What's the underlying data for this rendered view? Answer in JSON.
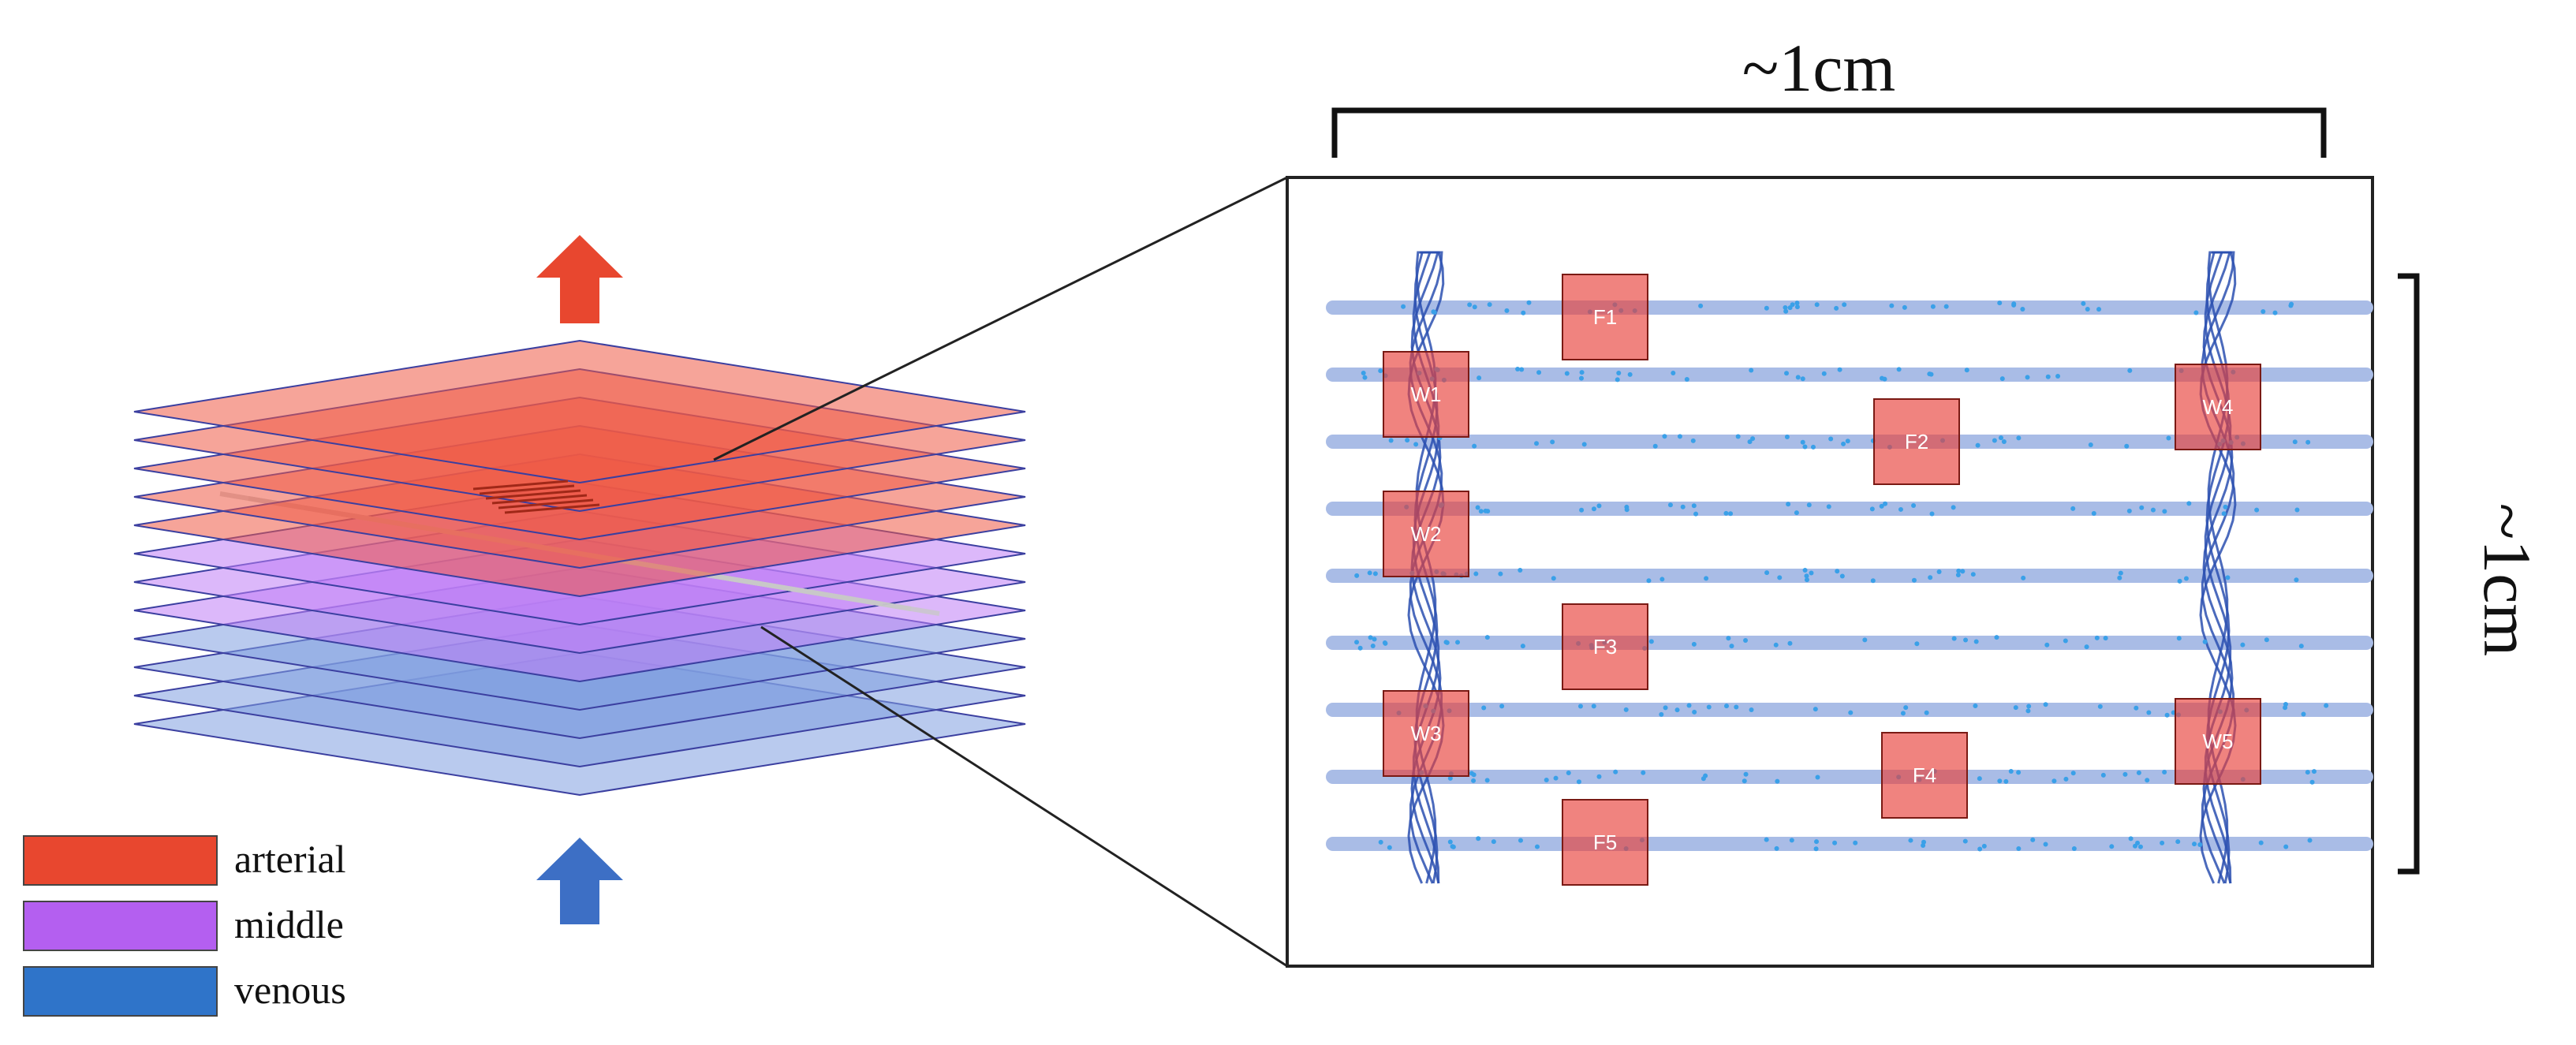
{
  "legend": [
    {
      "label": "arterial",
      "color": "#e8472f"
    },
    {
      "label": "middle",
      "color": "#b45ff0"
    },
    {
      "label": "venous",
      "color": "#2f74c9"
    }
  ],
  "dimensions": {
    "width_label": "~1cm",
    "height_label": "~1cm"
  },
  "arrows": {
    "outflow_color": "#e8472f",
    "inflow_color": "#3d6fc5"
  },
  "layers": {
    "arterial_count": 5,
    "middle_count": 3,
    "venous_count": 4,
    "arterial_fill": "#ef5a45",
    "middle_fill": "#c07ef5",
    "venous_fill": "#7f9fe0",
    "edge_color": "#3b3fa0"
  },
  "zoom": {
    "channel_color": "#a9bce6",
    "wall_color": "#2c50b0",
    "dot_color": "#3aa0e8",
    "box_color": "#e8413b",
    "channel_count": 9,
    "boxes": [
      {
        "label": "W1"
      },
      {
        "label": "W2"
      },
      {
        "label": "W3"
      },
      {
        "label": "W4"
      },
      {
        "label": "W5"
      },
      {
        "label": "F1"
      },
      {
        "label": "F2"
      },
      {
        "label": "F3"
      },
      {
        "label": "F4"
      },
      {
        "label": "F5"
      }
    ]
  }
}
